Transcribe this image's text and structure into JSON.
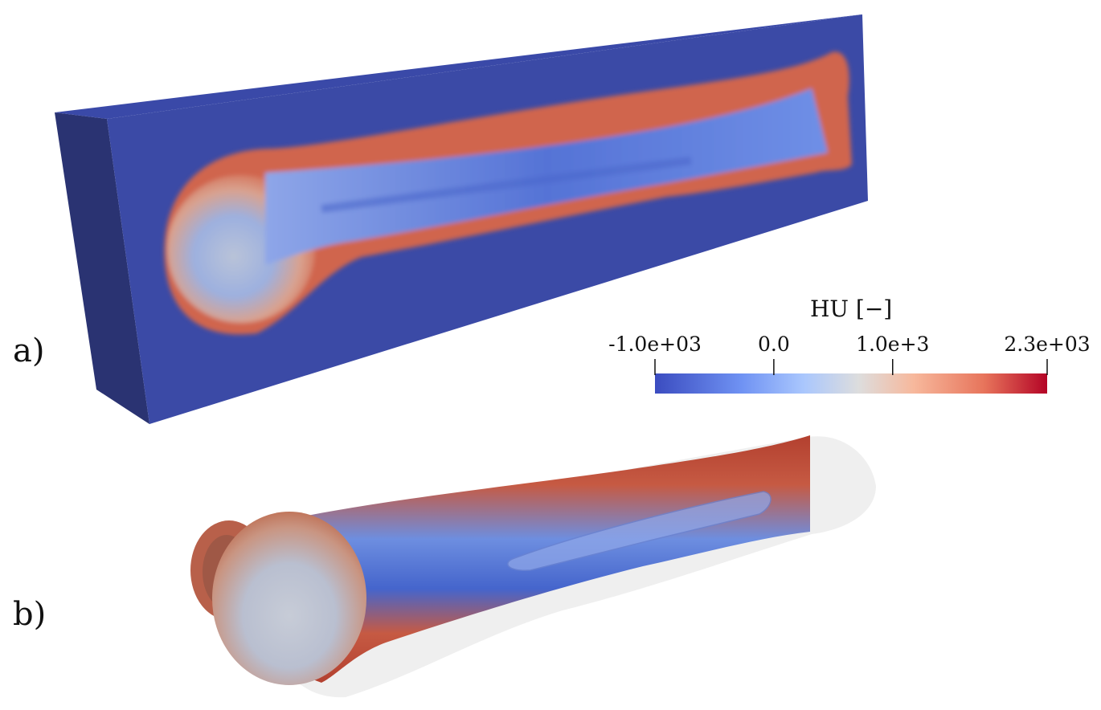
{
  "panels": {
    "a": {
      "label": "a)"
    },
    "b": {
      "label": "b)"
    }
  },
  "colorbar": {
    "title": "HU [−]",
    "min": -1000,
    "max": 2300,
    "ticks": [
      {
        "value": -1000,
        "label": "-1.0e+03"
      },
      {
        "value": 0,
        "label": "0.0"
      },
      {
        "value": 1000,
        "label": "1.0e+3"
      },
      {
        "value": 2300,
        "label": "2.3e+03"
      }
    ],
    "colormap": [
      "#3b4cc0",
      "#6f92f3",
      "#aac7fd",
      "#dddddd",
      "#f7b89c",
      "#e7745b",
      "#b40426"
    ]
  }
}
